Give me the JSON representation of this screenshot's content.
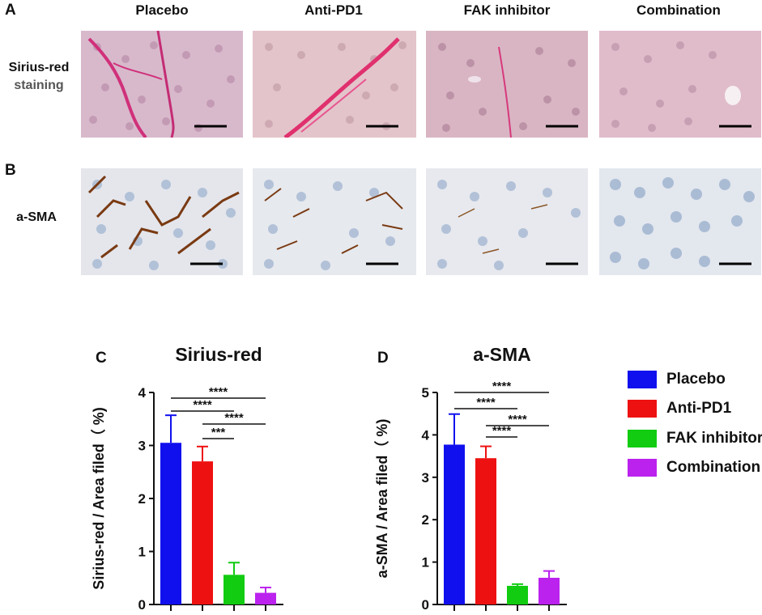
{
  "panels": {
    "a_letter": "A",
    "b_letter": "B",
    "c_letter": "C",
    "d_letter": "D"
  },
  "columns": [
    "Placebo",
    "Anti-PD1",
    "FAK inhibitor",
    "Combination"
  ],
  "rows": {
    "sirius_label_line1": "Sirius-red",
    "sirius_label_line2": "staining",
    "asma_label": "a-SMA"
  },
  "legend": [
    {
      "label": "Placebo",
      "color": "#1010ee"
    },
    {
      "label": "Anti-PD1",
      "color": "#ee1111"
    },
    {
      "label": "FAK inhibitor",
      "color": "#11cc11"
    },
    {
      "label": "Combination",
      "color": "#bb22ee"
    }
  ],
  "chart_data": [
    {
      "type": "bar",
      "title": "Sirius-red",
      "ylabel": "Sirius-red / Area filed（ %)",
      "xlabel": "",
      "categories": [
        "Placebo",
        "Anti-PD1",
        "FAK inhibitor",
        "Combination"
      ],
      "values": [
        3.05,
        2.7,
        0.56,
        0.22
      ],
      "errors": [
        0.52,
        0.28,
        0.23,
        0.1
      ],
      "colors": [
        "#1010ee",
        "#ee1111",
        "#11cc11",
        "#bb22ee"
      ],
      "ylim": [
        0,
        4
      ],
      "yticks": [
        "0",
        "1",
        "2",
        "3",
        "4"
      ],
      "significance": [
        {
          "from": 0,
          "to": 3,
          "label": "****"
        },
        {
          "from": 0,
          "to": 2,
          "label": "****"
        },
        {
          "from": 1,
          "to": 3,
          "label": "****"
        },
        {
          "from": 1,
          "to": 2,
          "label": "***"
        }
      ]
    },
    {
      "type": "bar",
      "title": "a-SMA",
      "ylabel": "a-SMA / Area filed（ %)",
      "xlabel": "",
      "categories": [
        "Placebo",
        "Anti-PD1",
        "FAK inhibitor",
        "Combination"
      ],
      "values": [
        3.77,
        3.45,
        0.44,
        0.63
      ],
      "errors": [
        0.72,
        0.28,
        0.04,
        0.16
      ],
      "colors": [
        "#1010ee",
        "#ee1111",
        "#11cc11",
        "#bb22ee"
      ],
      "ylim": [
        0,
        5
      ],
      "yticks": [
        "0",
        "1",
        "2",
        "3",
        "4",
        "5"
      ],
      "significance": [
        {
          "from": 0,
          "to": 3,
          "label": "****"
        },
        {
          "from": 0,
          "to": 2,
          "label": "****"
        },
        {
          "from": 1,
          "to": 3,
          "label": "****"
        },
        {
          "from": 1,
          "to": 2,
          "label": "****"
        }
      ]
    }
  ]
}
